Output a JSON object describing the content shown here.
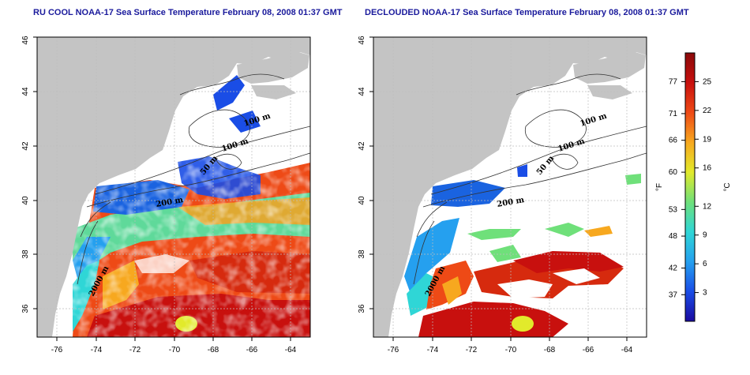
{
  "titles": {
    "left": "RU COOL NOAA-17 Sea Surface Temperature February 08, 2008 01:37 GMT",
    "right": "DECLOUDED NOAA-17 Sea Surface Temperature February 08, 2008 01:37 GMT"
  },
  "axes": {
    "lon_ticks": [
      "-76",
      "-74",
      "-72",
      "-70",
      "-68",
      "-66",
      "-64"
    ],
    "lat_ticks": [
      "36",
      "38",
      "40",
      "42",
      "44",
      "46"
    ]
  },
  "contour_labels": {
    "left": [
      "100 m",
      "100 m",
      "50 m",
      "200 m",
      "2000 m"
    ],
    "right": [
      "100 m",
      "100 m",
      "50 m",
      "200 m",
      "2000 m"
    ]
  },
  "colorbar": {
    "f_unit": "°F",
    "c_unit": "°C",
    "f_ticks": [
      "77",
      "71",
      "66",
      "60",
      "53",
      "48",
      "42",
      "37"
    ],
    "c_ticks": [
      "25",
      "22",
      "19",
      "16",
      "12",
      "9",
      "6",
      "3"
    ],
    "gradient": [
      "#1a0aa0",
      "#1a4de6",
      "#25a0ef",
      "#2fd6d6",
      "#6fe07a",
      "#e2ea2b",
      "#f7a81f",
      "#ee4a16",
      "#c8100e",
      "#8a0a0a"
    ]
  },
  "colors": {
    "land": "#c4c4c4",
    "ocean_cloud": "#ffffff",
    "grid": "#bdbdbd",
    "title": "#1a1a9c"
  }
}
